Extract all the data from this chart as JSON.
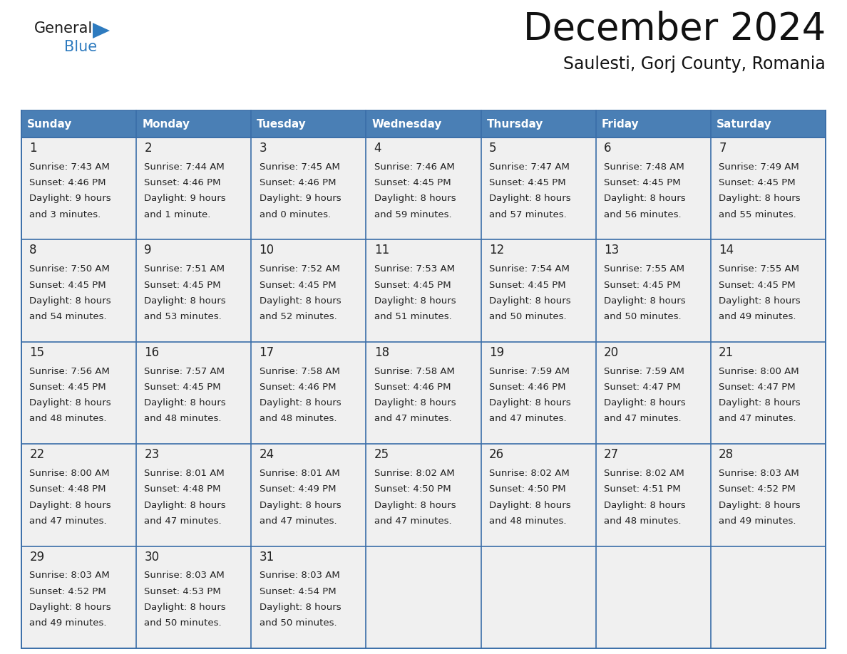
{
  "title": "December 2024",
  "subtitle": "Saulesti, Gorj County, Romania",
  "header_bg_color": "#4a7fb5",
  "header_text_color": "#ffffff",
  "cell_bg_color": "#f0f0f0",
  "grid_line_color": "#3a6ea8",
  "text_color": "#222222",
  "day_headers": [
    "Sunday",
    "Monday",
    "Tuesday",
    "Wednesday",
    "Thursday",
    "Friday",
    "Saturday"
  ],
  "days": [
    {
      "day": 1,
      "col": 0,
      "row": 0,
      "sunrise": "7:43 AM",
      "sunset": "4:46 PM",
      "daylight_hours": 9,
      "daylight_minutes": 3,
      "minute_word": "minutes"
    },
    {
      "day": 2,
      "col": 1,
      "row": 0,
      "sunrise": "7:44 AM",
      "sunset": "4:46 PM",
      "daylight_hours": 9,
      "daylight_minutes": 1,
      "minute_word": "minute"
    },
    {
      "day": 3,
      "col": 2,
      "row": 0,
      "sunrise": "7:45 AM",
      "sunset": "4:46 PM",
      "daylight_hours": 9,
      "daylight_minutes": 0,
      "minute_word": "minutes"
    },
    {
      "day": 4,
      "col": 3,
      "row": 0,
      "sunrise": "7:46 AM",
      "sunset": "4:45 PM",
      "daylight_hours": 8,
      "daylight_minutes": 59,
      "minute_word": "minutes"
    },
    {
      "day": 5,
      "col": 4,
      "row": 0,
      "sunrise": "7:47 AM",
      "sunset": "4:45 PM",
      "daylight_hours": 8,
      "daylight_minutes": 57,
      "minute_word": "minutes"
    },
    {
      "day": 6,
      "col": 5,
      "row": 0,
      "sunrise": "7:48 AM",
      "sunset": "4:45 PM",
      "daylight_hours": 8,
      "daylight_minutes": 56,
      "minute_word": "minutes"
    },
    {
      "day": 7,
      "col": 6,
      "row": 0,
      "sunrise": "7:49 AM",
      "sunset": "4:45 PM",
      "daylight_hours": 8,
      "daylight_minutes": 55,
      "minute_word": "minutes"
    },
    {
      "day": 8,
      "col": 0,
      "row": 1,
      "sunrise": "7:50 AM",
      "sunset": "4:45 PM",
      "daylight_hours": 8,
      "daylight_minutes": 54,
      "minute_word": "minutes"
    },
    {
      "day": 9,
      "col": 1,
      "row": 1,
      "sunrise": "7:51 AM",
      "sunset": "4:45 PM",
      "daylight_hours": 8,
      "daylight_minutes": 53,
      "minute_word": "minutes"
    },
    {
      "day": 10,
      "col": 2,
      "row": 1,
      "sunrise": "7:52 AM",
      "sunset": "4:45 PM",
      "daylight_hours": 8,
      "daylight_minutes": 52,
      "minute_word": "minutes"
    },
    {
      "day": 11,
      "col": 3,
      "row": 1,
      "sunrise": "7:53 AM",
      "sunset": "4:45 PM",
      "daylight_hours": 8,
      "daylight_minutes": 51,
      "minute_word": "minutes"
    },
    {
      "day": 12,
      "col": 4,
      "row": 1,
      "sunrise": "7:54 AM",
      "sunset": "4:45 PM",
      "daylight_hours": 8,
      "daylight_minutes": 50,
      "minute_word": "minutes"
    },
    {
      "day": 13,
      "col": 5,
      "row": 1,
      "sunrise": "7:55 AM",
      "sunset": "4:45 PM",
      "daylight_hours": 8,
      "daylight_minutes": 50,
      "minute_word": "minutes"
    },
    {
      "day": 14,
      "col": 6,
      "row": 1,
      "sunrise": "7:55 AM",
      "sunset": "4:45 PM",
      "daylight_hours": 8,
      "daylight_minutes": 49,
      "minute_word": "minutes"
    },
    {
      "day": 15,
      "col": 0,
      "row": 2,
      "sunrise": "7:56 AM",
      "sunset": "4:45 PM",
      "daylight_hours": 8,
      "daylight_minutes": 48,
      "minute_word": "minutes"
    },
    {
      "day": 16,
      "col": 1,
      "row": 2,
      "sunrise": "7:57 AM",
      "sunset": "4:45 PM",
      "daylight_hours": 8,
      "daylight_minutes": 48,
      "minute_word": "minutes"
    },
    {
      "day": 17,
      "col": 2,
      "row": 2,
      "sunrise": "7:58 AM",
      "sunset": "4:46 PM",
      "daylight_hours": 8,
      "daylight_minutes": 48,
      "minute_word": "minutes"
    },
    {
      "day": 18,
      "col": 3,
      "row": 2,
      "sunrise": "7:58 AM",
      "sunset": "4:46 PM",
      "daylight_hours": 8,
      "daylight_minutes": 47,
      "minute_word": "minutes"
    },
    {
      "day": 19,
      "col": 4,
      "row": 2,
      "sunrise": "7:59 AM",
      "sunset": "4:46 PM",
      "daylight_hours": 8,
      "daylight_minutes": 47,
      "minute_word": "minutes"
    },
    {
      "day": 20,
      "col": 5,
      "row": 2,
      "sunrise": "7:59 AM",
      "sunset": "4:47 PM",
      "daylight_hours": 8,
      "daylight_minutes": 47,
      "minute_word": "minutes"
    },
    {
      "day": 21,
      "col": 6,
      "row": 2,
      "sunrise": "8:00 AM",
      "sunset": "4:47 PM",
      "daylight_hours": 8,
      "daylight_minutes": 47,
      "minute_word": "minutes"
    },
    {
      "day": 22,
      "col": 0,
      "row": 3,
      "sunrise": "8:00 AM",
      "sunset": "4:48 PM",
      "daylight_hours": 8,
      "daylight_minutes": 47,
      "minute_word": "minutes"
    },
    {
      "day": 23,
      "col": 1,
      "row": 3,
      "sunrise": "8:01 AM",
      "sunset": "4:48 PM",
      "daylight_hours": 8,
      "daylight_minutes": 47,
      "minute_word": "minutes"
    },
    {
      "day": 24,
      "col": 2,
      "row": 3,
      "sunrise": "8:01 AM",
      "sunset": "4:49 PM",
      "daylight_hours": 8,
      "daylight_minutes": 47,
      "minute_word": "minutes"
    },
    {
      "day": 25,
      "col": 3,
      "row": 3,
      "sunrise": "8:02 AM",
      "sunset": "4:50 PM",
      "daylight_hours": 8,
      "daylight_minutes": 47,
      "minute_word": "minutes"
    },
    {
      "day": 26,
      "col": 4,
      "row": 3,
      "sunrise": "8:02 AM",
      "sunset": "4:50 PM",
      "daylight_hours": 8,
      "daylight_minutes": 48,
      "minute_word": "minutes"
    },
    {
      "day": 27,
      "col": 5,
      "row": 3,
      "sunrise": "8:02 AM",
      "sunset": "4:51 PM",
      "daylight_hours": 8,
      "daylight_minutes": 48,
      "minute_word": "minutes"
    },
    {
      "day": 28,
      "col": 6,
      "row": 3,
      "sunrise": "8:03 AM",
      "sunset": "4:52 PM",
      "daylight_hours": 8,
      "daylight_minutes": 49,
      "minute_word": "minutes"
    },
    {
      "day": 29,
      "col": 0,
      "row": 4,
      "sunrise": "8:03 AM",
      "sunset": "4:52 PM",
      "daylight_hours": 8,
      "daylight_minutes": 49,
      "minute_word": "minutes"
    },
    {
      "day": 30,
      "col": 1,
      "row": 4,
      "sunrise": "8:03 AM",
      "sunset": "4:53 PM",
      "daylight_hours": 8,
      "daylight_minutes": 50,
      "minute_word": "minutes"
    },
    {
      "day": 31,
      "col": 2,
      "row": 4,
      "sunrise": "8:03 AM",
      "sunset": "4:54 PM",
      "daylight_hours": 8,
      "daylight_minutes": 50,
      "minute_word": "minutes"
    }
  ],
  "logo_general_color": "#1a1a1a",
  "logo_blue_color": "#2e7bbf",
  "logo_triangle_color": "#2e7bbf",
  "title_fontsize": 38,
  "subtitle_fontsize": 17,
  "header_fontsize": 11,
  "daynum_fontsize": 12,
  "cell_fontsize": 9.5
}
